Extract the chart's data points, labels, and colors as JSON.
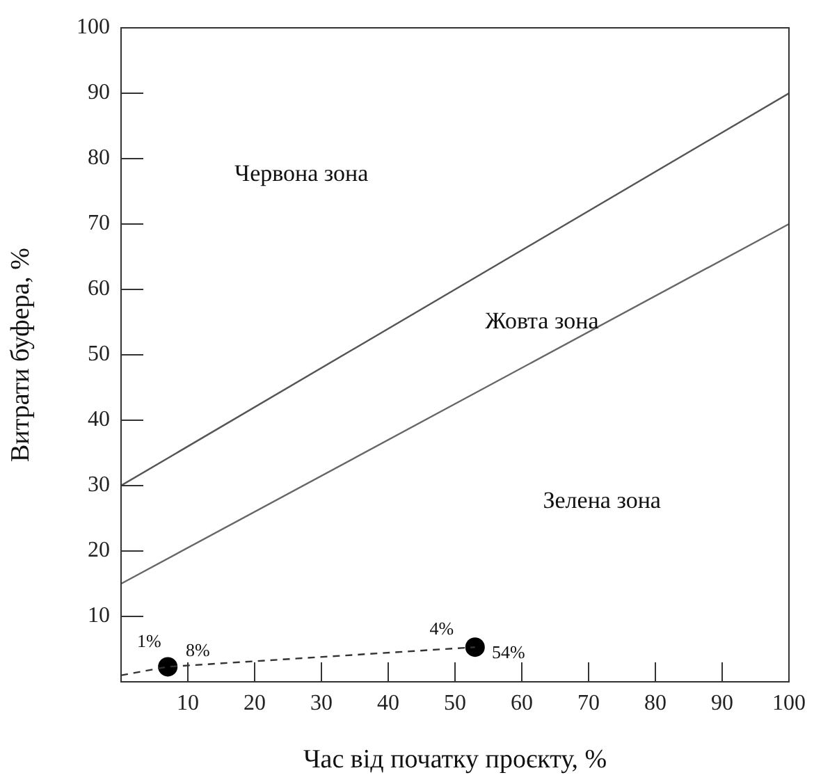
{
  "chart_data": {
    "type": "line",
    "xlabel": "Час від початку проєкту, %",
    "ylabel": "Витрати буфера, %",
    "xlim": [
      0,
      100
    ],
    "xticks": [
      10,
      20,
      30,
      40,
      50,
      60,
      70,
      80,
      90,
      100
    ],
    "ylim": [
      0,
      100
    ],
    "yticks": [
      10,
      20,
      30,
      40,
      50,
      60,
      70,
      80,
      90,
      100
    ],
    "grid": false,
    "legend": false,
    "marker": "none",
    "series": [
      {
        "x": [
          0,
          100
        ],
        "values": [
          30,
          90
        ],
        "color": "#555555",
        "line_style": "solid"
      },
      {
        "x": [
          0,
          100
        ],
        "values": [
          15,
          70
        ],
        "color": "#666666",
        "line_style": "solid"
      },
      {
        "x": [
          0,
          7,
          53
        ],
        "values": [
          1,
          2.3,
          5.3
        ],
        "color": "#333333",
        "line_style": "dashed"
      },
      {
        "type": "scatter",
        "x": [
          7,
          53
        ],
        "values": [
          2.3,
          5.3
        ],
        "color": "#000000",
        "marker": "circle"
      }
    ],
    "annotations": [
      "Червона зона",
      "Жовта зона",
      "Зелена зона",
      "1%",
      "8%",
      "4%",
      "54%"
    ]
  }
}
